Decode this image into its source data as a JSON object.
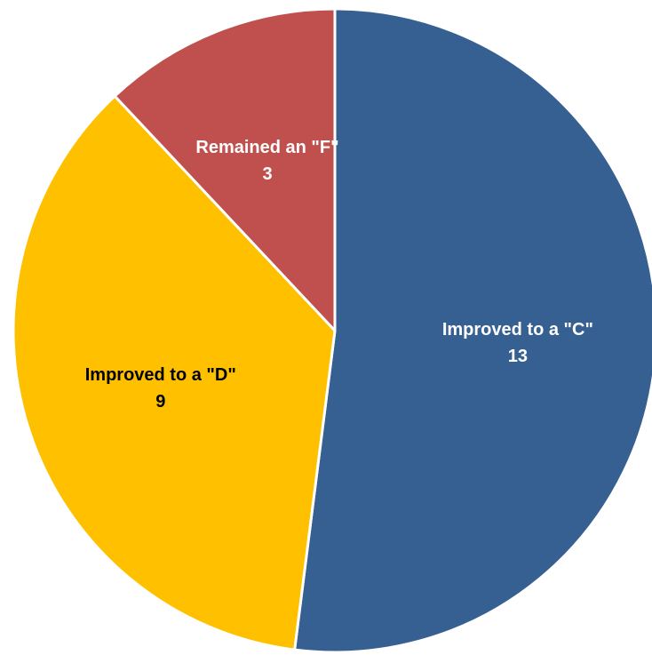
{
  "chart_data": {
    "type": "pie",
    "title": "",
    "start_angle_deg": 0,
    "direction": "clockwise",
    "slices": [
      {
        "label": "Improved to a \"C\"",
        "value": 13,
        "value_label": "13",
        "color": "#376092",
        "label_color": "#ffffff"
      },
      {
        "label": "Improved to a \"D\"",
        "value": 9,
        "value_label": "9",
        "color": "#FFC000",
        "label_color": "#000000"
      },
      {
        "label": "Remained an \"F\"",
        "value": 3,
        "value_label": "3",
        "color": "#C0504D",
        "label_color": "#ffffff"
      }
    ],
    "slice_border_color": "#ffffff"
  }
}
